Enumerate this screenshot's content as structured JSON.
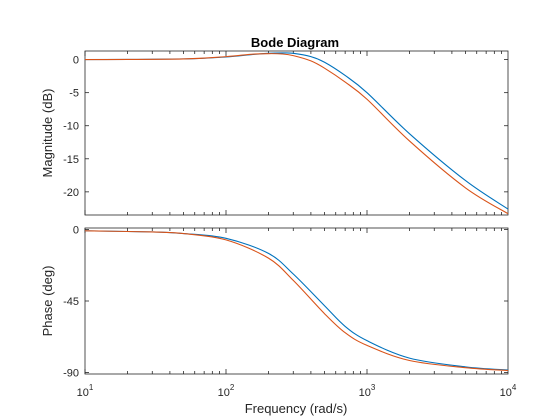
{
  "chart_data": {
    "type": "line",
    "title": "Bode Diagram",
    "xlabel": "Frequency  (rad/s)",
    "xscale": "log",
    "xlim": [
      10,
      10000
    ],
    "x_ticks": [
      {
        "base": "10",
        "exp": "1"
      },
      {
        "base": "10",
        "exp": "2"
      },
      {
        "base": "10",
        "exp": "3"
      },
      {
        "base": "10",
        "exp": "4"
      }
    ],
    "grid": false,
    "colors": {
      "series1": "#0072BD",
      "series2": "#D95319",
      "axes": "#262626"
    },
    "magnitude": {
      "ylabel": "Magnitude (dB)",
      "ylim": [
        -23.5,
        1.3
      ],
      "y_ticks": [
        0,
        -5,
        -10,
        -15,
        -20
      ],
      "series": [
        {
          "x": [
            10,
            50,
            100,
            150,
            200,
            250,
            300,
            400,
            500,
            700,
            1000,
            2000,
            5000,
            10000
          ],
          "y": [
            0,
            0.1,
            0.4,
            0.75,
            0.95,
            1.0,
            0.95,
            0.45,
            -0.4,
            -2.4,
            -5.0,
            -11.2,
            -18.3,
            -22.6
          ]
        },
        {
          "x": [
            10,
            50,
            100,
            150,
            200,
            250,
            300,
            400,
            500,
            700,
            1000,
            2000,
            5000,
            10000
          ],
          "y": [
            0,
            0.1,
            0.45,
            0.8,
            0.9,
            0.85,
            0.6,
            -0.2,
            -1.3,
            -3.4,
            -6.0,
            -12.3,
            -19.4,
            -23.3
          ]
        }
      ]
    },
    "phase": {
      "ylabel": "Phase (deg)",
      "ylim": [
        -91,
        1
      ],
      "y_ticks": [
        0,
        -45,
        -90
      ],
      "series": [
        {
          "x": [
            10,
            30,
            50,
            100,
            200,
            300,
            500,
            700,
            1000,
            2000,
            5000,
            10000
          ],
          "y": [
            -0.8,
            -1.5,
            -2.5,
            -5.5,
            -15,
            -28,
            -48,
            -61,
            -70,
            -81,
            -86.5,
            -88.5
          ]
        },
        {
          "x": [
            10,
            30,
            50,
            100,
            200,
            300,
            500,
            700,
            1000,
            2000,
            5000,
            10000
          ],
          "y": [
            -0.8,
            -1.5,
            -2.5,
            -6.5,
            -18,
            -32,
            -53,
            -65,
            -73,
            -82.5,
            -87,
            -88.8
          ]
        }
      ]
    }
  }
}
